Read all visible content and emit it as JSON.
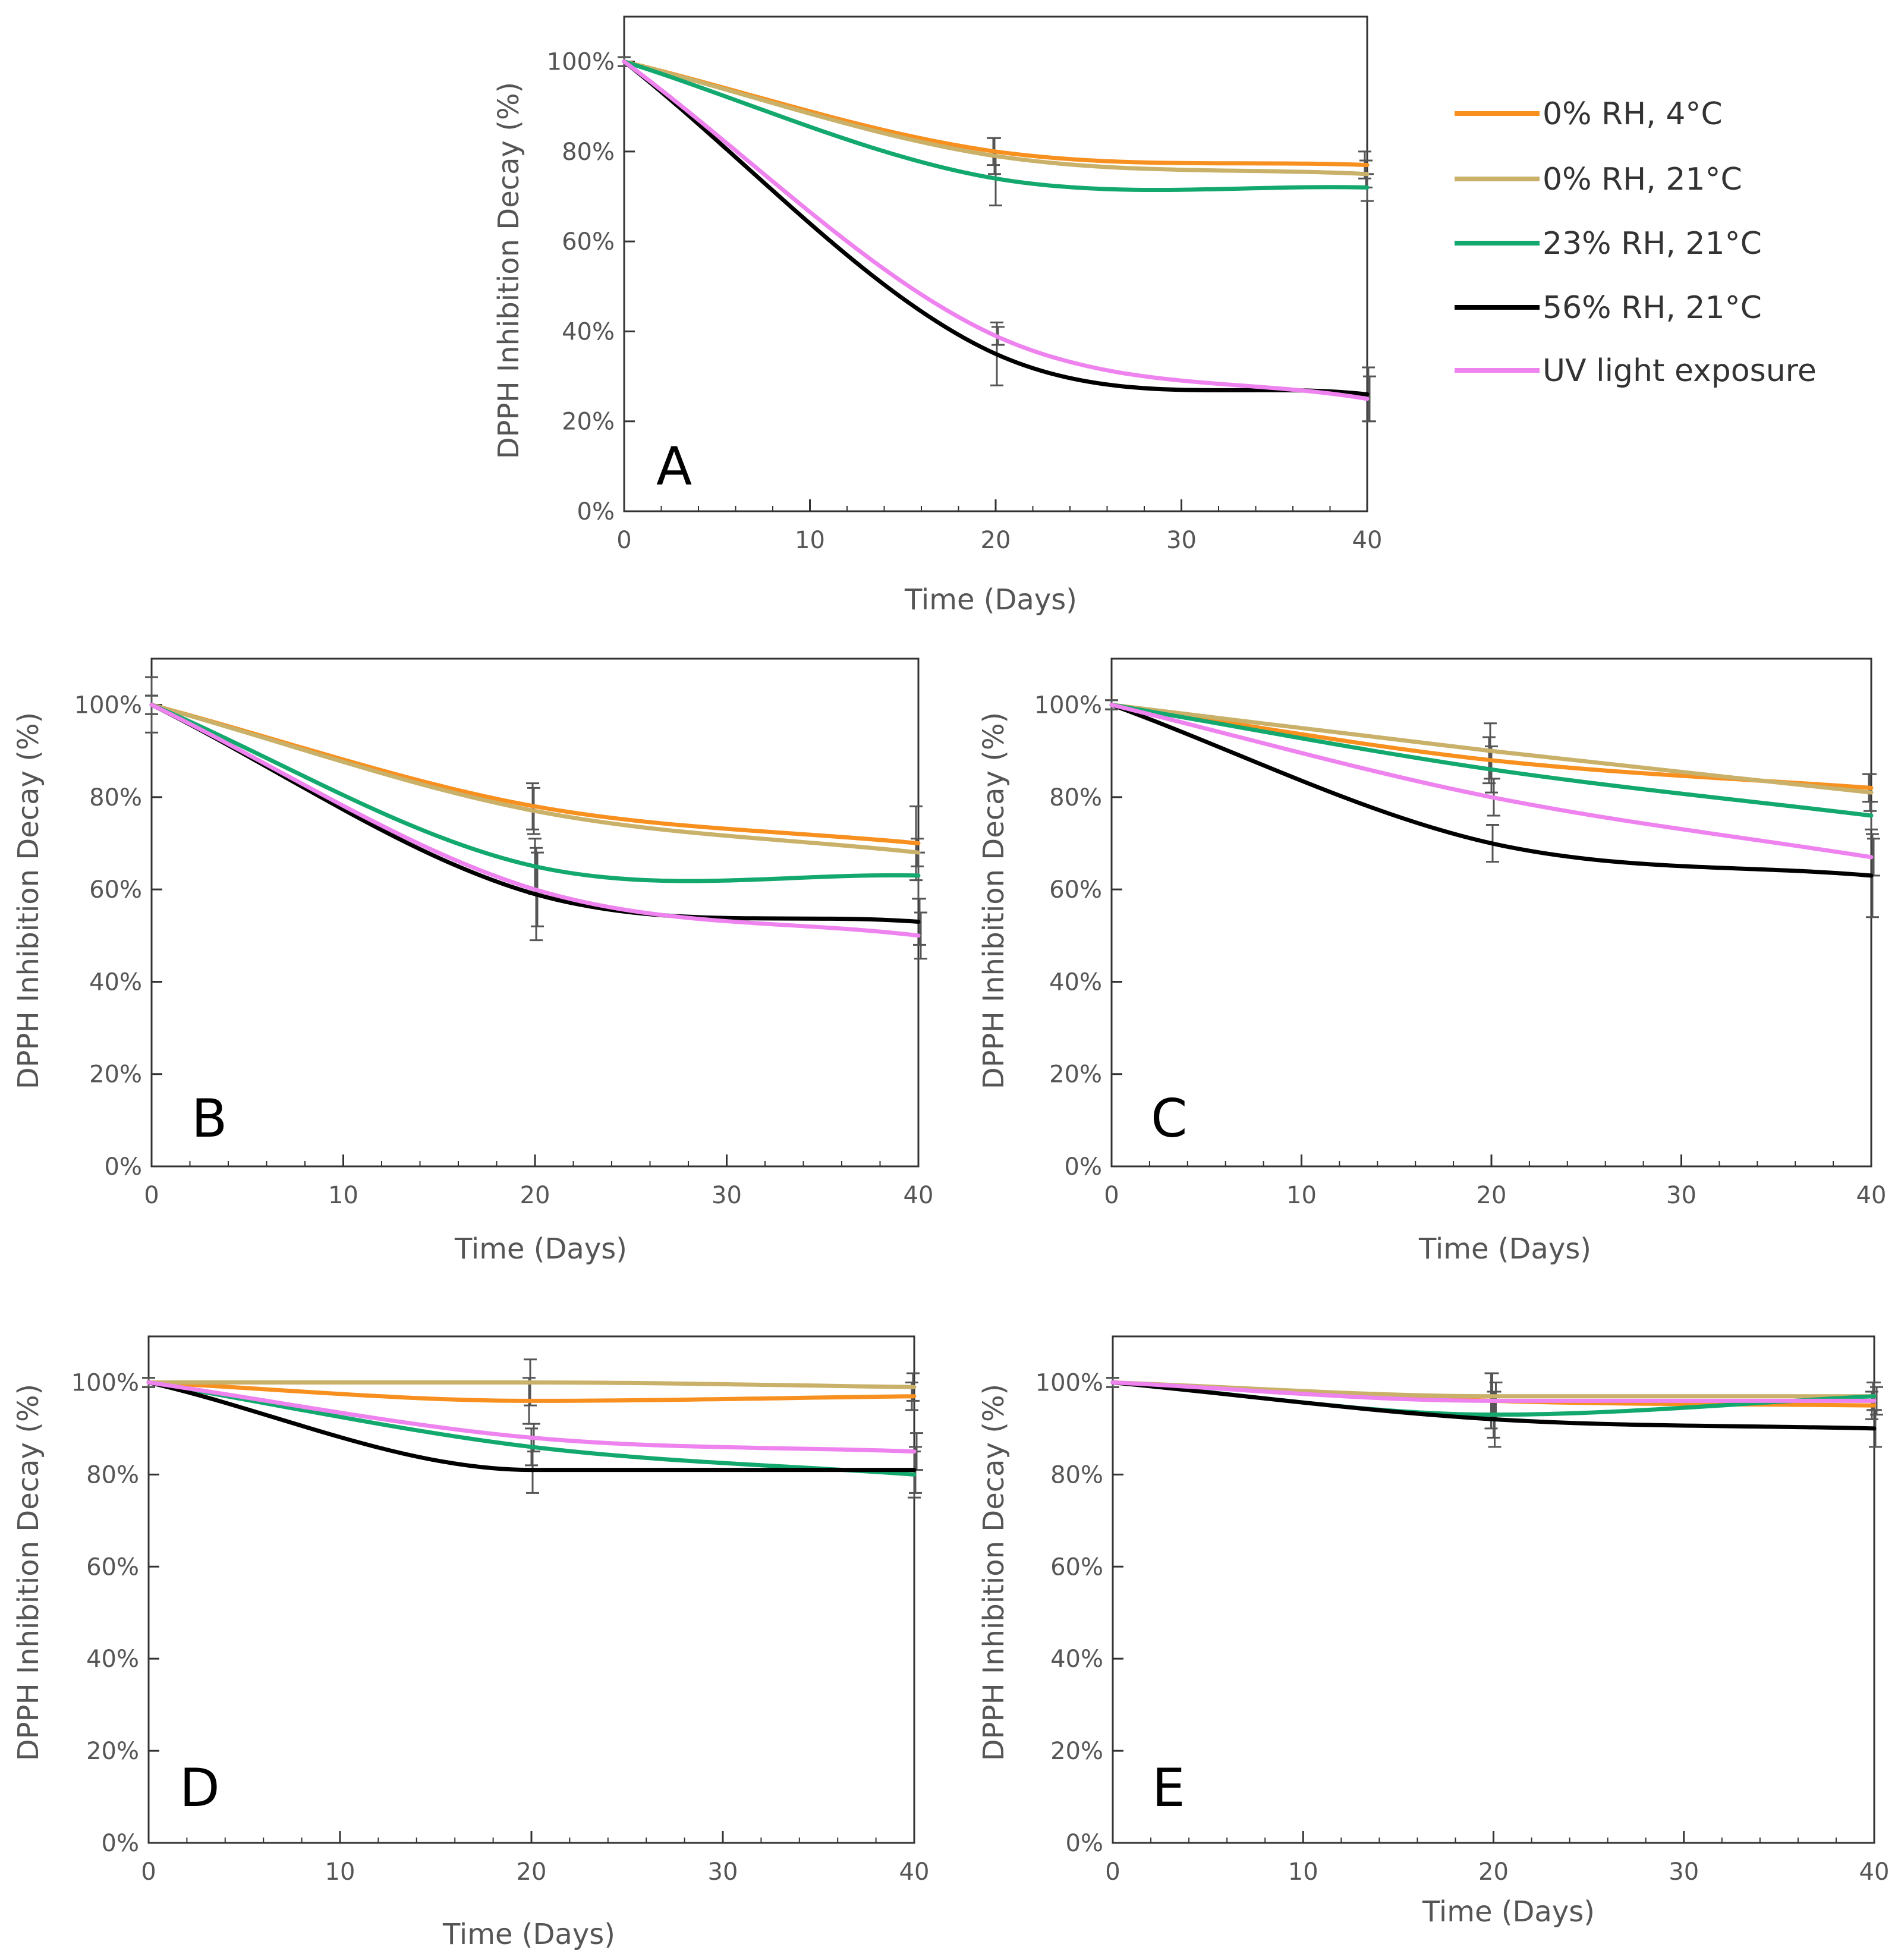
{
  "legend": {
    "entries": [
      {
        "key": "s0",
        "label": "0% RH, 4°C",
        "color": "#f7901e"
      },
      {
        "key": "s1",
        "label": "0% RH, 21°C",
        "color": "#c9b16a"
      },
      {
        "key": "s2",
        "label": "23% RH, 21°C",
        "color": "#12a86e"
      },
      {
        "key": "s3",
        "label": "56% RH, 21°C",
        "color": "#000000"
      },
      {
        "key": "s4",
        "label": "UV light exposure",
        "color": "#ee82ee"
      }
    ]
  },
  "errorbar_color": "#555555",
  "chart_data": [
    {
      "panel": "A",
      "type": "line",
      "xlabel": "Time (Days)",
      "ylabel": "DPPH Inhibition Decay (%)",
      "xlim": [
        0,
        40
      ],
      "ylim": [
        0,
        110
      ],
      "xticks": [
        0,
        10,
        20,
        30,
        40
      ],
      "yticks": [
        "0%",
        "20%",
        "40%",
        "60%",
        "80%",
        "100%"
      ],
      "x": [
        0,
        20,
        40
      ],
      "series": [
        {
          "name": "0% RH, 4°C",
          "values": [
            100,
            80,
            77
          ],
          "errors": [
            1,
            3,
            3
          ]
        },
        {
          "name": "0% RH, 21°C",
          "values": [
            100,
            79,
            75
          ],
          "errors": [
            1,
            4,
            3
          ]
        },
        {
          "name": "23% RH, 21°C",
          "values": [
            100,
            74,
            72
          ],
          "errors": [
            1,
            6,
            3
          ]
        },
        {
          "name": "56% RH, 21°C",
          "values": [
            100,
            35,
            26
          ],
          "errors": [
            1,
            7,
            6
          ]
        },
        {
          "name": "UV light exposure",
          "values": [
            100,
            39,
            25
          ],
          "errors": [
            1,
            2,
            5
          ]
        }
      ]
    },
    {
      "panel": "B",
      "type": "line",
      "xlabel": "Time (Days)",
      "ylabel": "DPPH Inhibition Decay (%)",
      "xlim": [
        0,
        40
      ],
      "ylim": [
        0,
        110
      ],
      "xticks": [
        0,
        10,
        20,
        30,
        40
      ],
      "yticks": [
        "0%",
        "20%",
        "40%",
        "60%",
        "80%",
        "100%"
      ],
      "x": [
        0,
        20,
        40
      ],
      "series": [
        {
          "name": "0% RH, 4°C",
          "values": [
            100,
            78,
            70
          ],
          "errors": [
            6,
            5,
            8
          ]
        },
        {
          "name": "0% RH, 21°C",
          "values": [
            100,
            77,
            68
          ],
          "errors": [
            2,
            5,
            3
          ]
        },
        {
          "name": "23% RH, 21°C",
          "values": [
            100,
            65,
            63
          ],
          "errors": [
            2,
            6,
            5
          ]
        },
        {
          "name": "56% RH, 21°C",
          "values": [
            100,
            59,
            53
          ],
          "errors": [
            2,
            10,
            5
          ]
        },
        {
          "name": "UV light exposure",
          "values": [
            100,
            60,
            50
          ],
          "errors": [
            2,
            8,
            5
          ]
        }
      ]
    },
    {
      "panel": "C",
      "type": "line",
      "xlabel": "Time (Days)",
      "ylabel": "DPPH Inhibition Decay (%)",
      "xlim": [
        0,
        40
      ],
      "ylim": [
        0,
        110
      ],
      "xticks": [
        0,
        10,
        20,
        30,
        40
      ],
      "yticks": [
        "0%",
        "20%",
        "40%",
        "60%",
        "80%",
        "100%"
      ],
      "x": [
        0,
        20,
        40
      ],
      "series": [
        {
          "name": "0% RH, 4°C",
          "values": [
            100,
            88,
            82
          ],
          "errors": [
            1,
            5,
            3
          ]
        },
        {
          "name": "0% RH, 21°C",
          "values": [
            100,
            90,
            81
          ],
          "errors": [
            1,
            6,
            4
          ]
        },
        {
          "name": "23% RH, 21°C",
          "values": [
            100,
            86,
            76
          ],
          "errors": [
            1,
            5,
            3
          ]
        },
        {
          "name": "56% RH, 21°C",
          "values": [
            100,
            70,
            63
          ],
          "errors": [
            1,
            4,
            9
          ]
        },
        {
          "name": "UV light exposure",
          "values": [
            100,
            80,
            67
          ],
          "errors": [
            1,
            4,
            4
          ]
        }
      ]
    },
    {
      "panel": "D",
      "type": "line",
      "xlabel": "Time (Days)",
      "ylabel": "DPPH Inhibition Decay (%)",
      "xlim": [
        0,
        40
      ],
      "ylim": [
        0,
        110
      ],
      "xticks": [
        0,
        10,
        20,
        30,
        40
      ],
      "yticks": [
        "0%",
        "20%",
        "40%",
        "60%",
        "80%",
        "100%"
      ],
      "x": [
        0,
        20,
        40
      ],
      "series": [
        {
          "name": "0% RH, 4°C",
          "values": [
            100,
            96,
            97
          ],
          "errors": [
            1,
            5,
            3
          ]
        },
        {
          "name": "0% RH, 21°C",
          "values": [
            100,
            100,
            99
          ],
          "errors": [
            1,
            5,
            3
          ]
        },
        {
          "name": "23% RH, 21°C",
          "values": [
            100,
            86,
            80
          ],
          "errors": [
            1,
            4,
            5
          ]
        },
        {
          "name": "56% RH, 21°C",
          "values": [
            100,
            81,
            81
          ],
          "errors": [
            1,
            5,
            5
          ]
        },
        {
          "name": "UV light exposure",
          "values": [
            100,
            88,
            85
          ],
          "errors": [
            1,
            3,
            4
          ]
        }
      ]
    },
    {
      "panel": "E",
      "type": "line",
      "xlabel": "Time (Days)",
      "ylabel": "DPPH Inhibition Decay (%)",
      "xlim": [
        0,
        40
      ],
      "ylim": [
        0,
        110
      ],
      "xticks": [
        0,
        10,
        20,
        30,
        40
      ],
      "yticks": [
        "0%",
        "20%",
        "40%",
        "60%",
        "80%",
        "100%"
      ],
      "x": [
        0,
        20,
        40
      ],
      "series": [
        {
          "name": "0% RH, 4°C",
          "values": [
            100,
            96,
            95
          ],
          "errors": [
            1,
            6,
            3
          ]
        },
        {
          "name": "0% RH, 21°C",
          "values": [
            100,
            97,
            97
          ],
          "errors": [
            1,
            5,
            3
          ]
        },
        {
          "name": "23% RH, 21°C",
          "values": [
            100,
            93,
            97
          ],
          "errors": [
            1,
            5,
            3
          ]
        },
        {
          "name": "56% RH, 21°C",
          "values": [
            100,
            92,
            90
          ],
          "errors": [
            1,
            6,
            4
          ]
        },
        {
          "name": "UV light exposure",
          "values": [
            100,
            96,
            96
          ],
          "errors": [
            1,
            4,
            3
          ]
        }
      ]
    }
  ]
}
